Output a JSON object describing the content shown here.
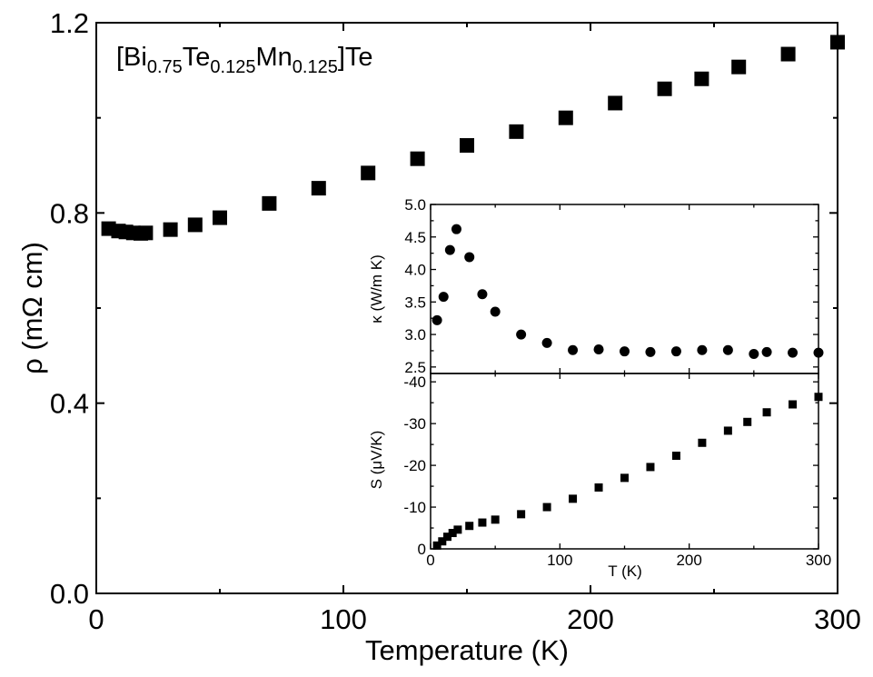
{
  "chart_data": [
    {
      "type": "scatter",
      "name_label": "main",
      "title_parts": [
        {
          "text": "[Bi",
          "sub": false
        },
        {
          "text": "0.75",
          "sub": true
        },
        {
          "text": "Te",
          "sub": false
        },
        {
          "text": "0.125",
          "sub": true
        },
        {
          "text": "Mn",
          "sub": false
        },
        {
          "text": "0.125",
          "sub": true
        },
        {
          "text": "]Te",
          "sub": false
        }
      ],
      "xlabel": "Temperature (K)",
      "ylabel": "ρ (mΩ cm)",
      "xlim": [
        0,
        300
      ],
      "ylim": [
        0.0,
        1.2
      ],
      "xticks": [
        0,
        100,
        200,
        300
      ],
      "xtick_labels": [
        "0",
        "100",
        "200",
        "300"
      ],
      "yticks": [
        0.0,
        0.4,
        0.8,
        1.2
      ],
      "ytick_labels": [
        "0.0",
        "0.4",
        "0.8",
        "1.2"
      ],
      "marker": "square",
      "color": "#000000",
      "x": [
        5,
        9,
        12,
        15,
        18,
        20,
        30,
        40,
        50,
        70,
        90,
        110,
        130,
        150,
        170,
        190,
        210,
        230,
        245,
        260,
        280,
        300
      ],
      "y": [
        0.767,
        0.762,
        0.76,
        0.758,
        0.757,
        0.758,
        0.765,
        0.775,
        0.79,
        0.82,
        0.852,
        0.884,
        0.914,
        0.942,
        0.971,
        1.0,
        1.031,
        1.061,
        1.082,
        1.107,
        1.134,
        1.159
      ]
    },
    {
      "type": "scatter",
      "name_label": "inset-kappa",
      "ylabel": "κ (W/m K)",
      "xlim": [
        0,
        300
      ],
      "ylim": [
        2.4,
        5.0
      ],
      "yticks": [
        2.5,
        3.0,
        3.5,
        4.0,
        4.5,
        5.0
      ],
      "ytick_labels": [
        "2.5",
        "3.0",
        "3.5",
        "4.0",
        "4.5",
        "5.0"
      ],
      "marker": "circle",
      "color": "#000000",
      "x": [
        5,
        10,
        15,
        20,
        30,
        40,
        50,
        70,
        90,
        110,
        130,
        150,
        170,
        190,
        210,
        230,
        250,
        260,
        280,
        300
      ],
      "y": [
        3.22,
        3.58,
        4.3,
        4.62,
        4.19,
        3.62,
        3.35,
        3.0,
        2.87,
        2.76,
        2.77,
        2.74,
        2.73,
        2.74,
        2.76,
        2.76,
        2.7,
        2.73,
        2.72,
        2.72
      ]
    },
    {
      "type": "scatter",
      "name_label": "inset-seebeck",
      "xlabel": "T (K)",
      "ylabel": "S (μV/K)",
      "xlim": [
        0,
        300
      ],
      "ylim": [
        0,
        -42
      ],
      "xticks": [
        0,
        100,
        200,
        300
      ],
      "xtick_labels": [
        "0",
        "100",
        "200",
        "300"
      ],
      "yticks": [
        0,
        -10,
        -20,
        -30,
        -40
      ],
      "ytick_labels": [
        "0",
        "-10",
        "-20",
        "-30",
        "-40"
      ],
      "marker": "square",
      "color": "#000000",
      "x": [
        5,
        9,
        13,
        17,
        21,
        30,
        40,
        50,
        70,
        90,
        110,
        130,
        150,
        170,
        190,
        210,
        230,
        245,
        260,
        280,
        300
      ],
      "y": [
        -0.8,
        -1.8,
        -2.9,
        -3.8,
        -4.6,
        -5.5,
        -6.3,
        -7.0,
        -8.3,
        -10.0,
        -12.0,
        -14.7,
        -17.0,
        -19.6,
        -22.3,
        -25.4,
        -28.3,
        -30.4,
        -32.7,
        -34.6,
        -36.4
      ]
    }
  ]
}
